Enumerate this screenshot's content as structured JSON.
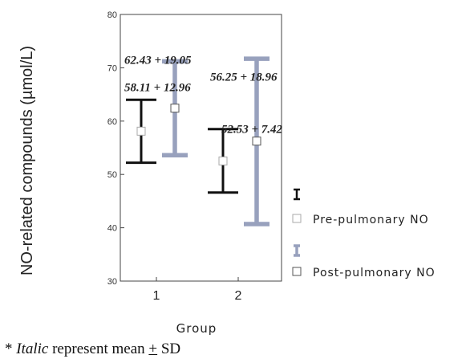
{
  "chart_data": {
    "type": "errorbar",
    "xlabel": "Group",
    "ylabel": "NO-related compounds (µmol/L)",
    "ylim": [
      30,
      80
    ],
    "yticks": [
      30,
      40,
      50,
      60,
      70,
      80
    ],
    "categories": [
      "1",
      "2"
    ],
    "series": [
      {
        "name": "Pre-pulmonary NO",
        "color": "#111111",
        "values": [
          {
            "category": "1",
            "mean": 58.11,
            "lower": 52.2,
            "upper": 64.0,
            "label": "58.11 + 12.96"
          },
          {
            "category": "2",
            "mean": 52.53,
            "lower": 46.6,
            "upper": 58.5,
            "label": "52.53 + 7.42"
          }
        ]
      },
      {
        "name": "Post-pulmonary NO",
        "color": "#98a1bd",
        "values": [
          {
            "category": "1",
            "mean": 62.43,
            "lower": 53.6,
            "upper": 71.2,
            "label": "62.43 + 19.05"
          },
          {
            "category": "2",
            "mean": 56.25,
            "lower": 40.7,
            "upper": 71.7,
            "label": "56.25 + 18.96"
          }
        ]
      }
    ],
    "legend_position": "right"
  },
  "footnote": {
    "prefix": "* ",
    "italic_word": "Italic",
    "middle": " represent mean ",
    "pm_symbol": "+",
    "suffix": " SD"
  }
}
